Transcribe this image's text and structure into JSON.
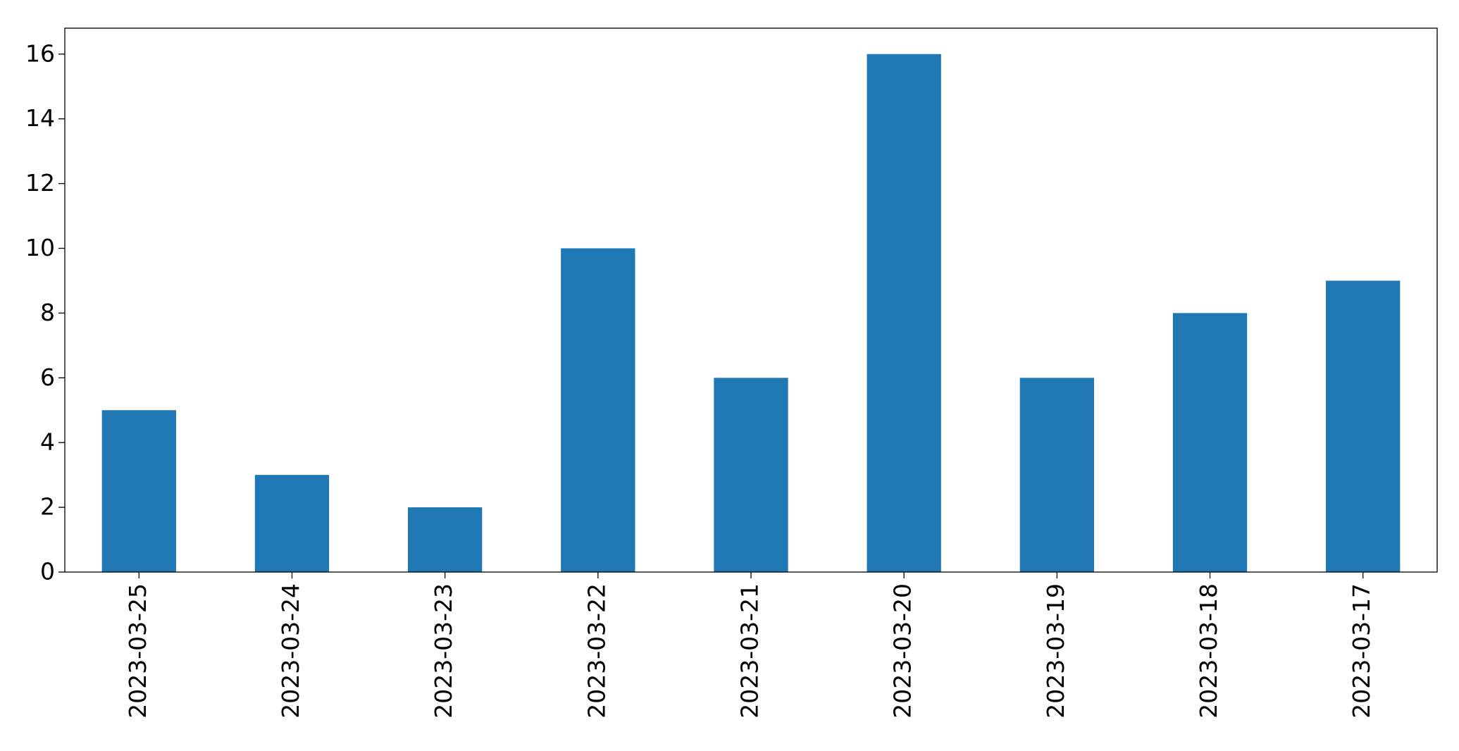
{
  "chart_data": {
    "type": "bar",
    "categories": [
      "2023-03-25",
      "2023-03-24",
      "2023-03-23",
      "2023-03-22",
      "2023-03-21",
      "2023-03-20",
      "2023-03-19",
      "2023-03-18",
      "2023-03-17"
    ],
    "series": [
      {
        "values": [
          5,
          3,
          2,
          10,
          6,
          16,
          6,
          8,
          9
        ]
      }
    ],
    "yticks": [
      0,
      2,
      4,
      6,
      8,
      10,
      12,
      14,
      16
    ],
    "ylim": [
      0,
      16.8
    ],
    "title": "",
    "xlabel": "",
    "ylabel": "",
    "grid": false,
    "legend": "none",
    "colors": {
      "bar": "#1f77b4",
      "axis": "#000000",
      "background": "#ffffff"
    }
  }
}
